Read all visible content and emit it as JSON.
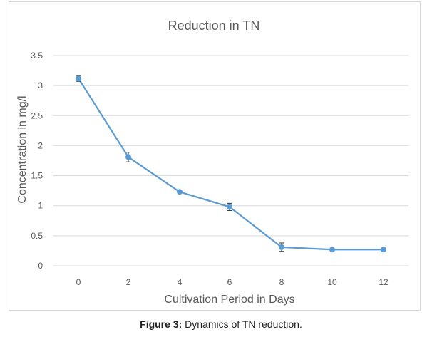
{
  "caption": {
    "label": "Figure 3:",
    "text": " Dynamics of TN reduction."
  },
  "colors": {
    "series": "#5b9bd5",
    "grid": "#d9d9d9",
    "tick_text": "#595959",
    "title_text": "#595959",
    "error_bar": "#333333"
  },
  "chart_data": {
    "type": "line",
    "title": "Reduction in TN",
    "xlabel": "Cultivation Period in Days",
    "ylabel": "Concentration in mg/l",
    "x": [
      0,
      2,
      4,
      6,
      8,
      10,
      12
    ],
    "x_tick_labels": [
      "0",
      "2",
      "4",
      "6",
      "8",
      "10",
      "12"
    ],
    "y_tick_labels": [
      "0",
      "0.5",
      "1",
      "1.5",
      "2",
      "2.5",
      "3",
      "3.5"
    ],
    "ylim": [
      0,
      3.5
    ],
    "grid": true,
    "legend": "none",
    "series": [
      {
        "values": [
          3.12,
          1.81,
          1.23,
          0.98,
          0.31,
          0.27,
          0.27
        ],
        "error": [
          0.05,
          0.08,
          0.02,
          0.06,
          0.07,
          0.02,
          0.02
        ]
      }
    ]
  }
}
